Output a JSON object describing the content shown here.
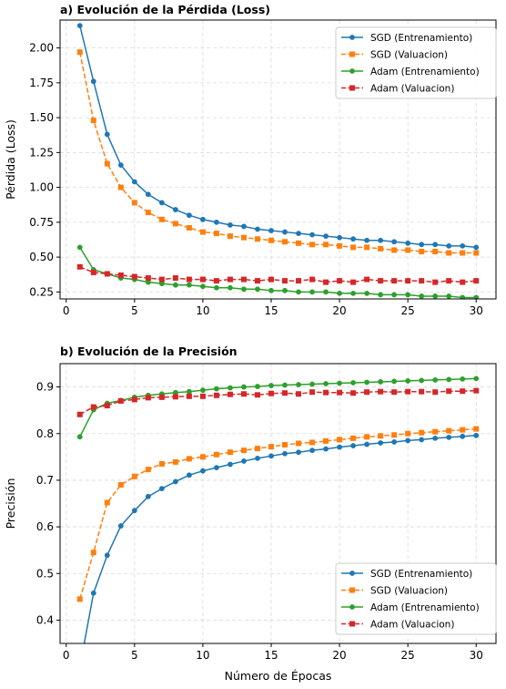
{
  "chart_data": [
    {
      "type": "line",
      "title": "a) Evolución de la Pérdida (Loss)",
      "xlabel": "",
      "ylabel": "Pérdida (Loss)",
      "xlim": [
        -0.45,
        31.45
      ],
      "ylim": [
        0.2,
        2.2
      ],
      "xticks": [
        0,
        5,
        10,
        15,
        20,
        25,
        30
      ],
      "yticks": [
        0.25,
        0.5,
        0.75,
        1.0,
        1.25,
        1.5,
        1.75,
        2.0
      ],
      "ytick_labels": [
        "0.25",
        "0.50",
        "0.75",
        "1.00",
        "1.25",
        "1.50",
        "1.75",
        "2.00"
      ],
      "grid": true,
      "legend_position": "top-right",
      "x": [
        1,
        2,
        3,
        4,
        5,
        6,
        7,
        8,
        9,
        10,
        11,
        12,
        13,
        14,
        15,
        16,
        17,
        18,
        19,
        20,
        21,
        22,
        23,
        24,
        25,
        26,
        27,
        28,
        29,
        30
      ],
      "series": [
        {
          "name": "SGD (Entrenamiento)",
          "color": "#1f77b4",
          "marker": "circle",
          "dash": false,
          "values": [
            2.16,
            1.76,
            1.38,
            1.16,
            1.04,
            0.95,
            0.89,
            0.84,
            0.8,
            0.77,
            0.75,
            0.73,
            0.72,
            0.7,
            0.69,
            0.68,
            0.67,
            0.66,
            0.65,
            0.64,
            0.63,
            0.62,
            0.62,
            0.61,
            0.6,
            0.59,
            0.59,
            0.58,
            0.58,
            0.57
          ]
        },
        {
          "name": "SGD (Valuacion)",
          "color": "#ff7f0e",
          "marker": "square",
          "dash": true,
          "values": [
            1.97,
            1.48,
            1.17,
            1.0,
            0.89,
            0.82,
            0.77,
            0.74,
            0.71,
            0.68,
            0.67,
            0.65,
            0.64,
            0.63,
            0.62,
            0.61,
            0.6,
            0.59,
            0.59,
            0.58,
            0.57,
            0.57,
            0.56,
            0.55,
            0.55,
            0.54,
            0.54,
            0.53,
            0.53,
            0.53
          ]
        },
        {
          "name": "Adam (Entrenamiento)",
          "color": "#2ca02c",
          "marker": "circle",
          "dash": false,
          "values": [
            0.57,
            0.41,
            0.38,
            0.35,
            0.34,
            0.32,
            0.31,
            0.3,
            0.3,
            0.29,
            0.28,
            0.28,
            0.27,
            0.27,
            0.26,
            0.26,
            0.25,
            0.25,
            0.25,
            0.24,
            0.24,
            0.24,
            0.23,
            0.23,
            0.23,
            0.22,
            0.22,
            0.22,
            0.21,
            0.21
          ]
        },
        {
          "name": "Adam (Valuacion)",
          "color": "#d62728",
          "marker": "square",
          "dash": true,
          "values": [
            0.43,
            0.39,
            0.38,
            0.37,
            0.36,
            0.35,
            0.34,
            0.35,
            0.34,
            0.34,
            0.33,
            0.34,
            0.34,
            0.33,
            0.34,
            0.33,
            0.33,
            0.34,
            0.32,
            0.33,
            0.32,
            0.34,
            0.33,
            0.33,
            0.33,
            0.33,
            0.32,
            0.33,
            0.32,
            0.33
          ]
        }
      ]
    },
    {
      "type": "line",
      "title": "b) Evolución de la Precisión",
      "xlabel": "Número de Épocas",
      "ylabel": "Precisión",
      "xlim": [
        -0.45,
        31.45
      ],
      "ylim": [
        0.35,
        0.95
      ],
      "xticks": [
        0,
        5,
        10,
        15,
        20,
        25,
        30
      ],
      "yticks": [
        0.4,
        0.5,
        0.6,
        0.7,
        0.8,
        0.9
      ],
      "ytick_labels": [
        "0.4",
        "0.5",
        "0.6",
        "0.7",
        "0.8",
        "0.9"
      ],
      "grid": true,
      "legend_position": "bottom-right",
      "x": [
        1,
        2,
        3,
        4,
        5,
        6,
        7,
        8,
        9,
        10,
        11,
        12,
        13,
        14,
        15,
        16,
        17,
        18,
        19,
        20,
        21,
        22,
        23,
        24,
        25,
        26,
        27,
        28,
        29,
        30
      ],
      "series": [
        {
          "name": "SGD (Entrenamiento)",
          "color": "#1f77b4",
          "marker": "circle",
          "dash": false,
          "values": [
            0.3,
            0.458,
            0.539,
            0.602,
            0.635,
            0.665,
            0.682,
            0.697,
            0.711,
            0.72,
            0.727,
            0.734,
            0.741,
            0.747,
            0.752,
            0.757,
            0.76,
            0.764,
            0.767,
            0.771,
            0.774,
            0.777,
            0.78,
            0.782,
            0.785,
            0.787,
            0.79,
            0.792,
            0.794,
            0.796
          ]
        },
        {
          "name": "SGD (Valuacion)",
          "color": "#ff7f0e",
          "marker": "square",
          "dash": true,
          "values": [
            0.445,
            0.545,
            0.652,
            0.69,
            0.708,
            0.723,
            0.735,
            0.739,
            0.746,
            0.75,
            0.755,
            0.76,
            0.764,
            0.768,
            0.772,
            0.776,
            0.779,
            0.781,
            0.784,
            0.787,
            0.79,
            0.793,
            0.795,
            0.797,
            0.8,
            0.802,
            0.804,
            0.806,
            0.808,
            0.81
          ]
        },
        {
          "name": "Adam (Entrenamiento)",
          "color": "#2ca02c",
          "marker": "circle",
          "dash": false,
          "values": [
            0.793,
            0.851,
            0.865,
            0.871,
            0.878,
            0.882,
            0.885,
            0.888,
            0.89,
            0.893,
            0.896,
            0.898,
            0.9,
            0.901,
            0.903,
            0.904,
            0.905,
            0.906,
            0.907,
            0.908,
            0.909,
            0.91,
            0.911,
            0.912,
            0.913,
            0.914,
            0.915,
            0.916,
            0.917,
            0.918
          ]
        },
        {
          "name": "Adam (Valuacion)",
          "color": "#d62728",
          "marker": "square",
          "dash": true,
          "values": [
            0.841,
            0.857,
            0.86,
            0.87,
            0.873,
            0.877,
            0.878,
            0.879,
            0.88,
            0.88,
            0.882,
            0.884,
            0.885,
            0.883,
            0.886,
            0.887,
            0.885,
            0.889,
            0.888,
            0.888,
            0.887,
            0.889,
            0.89,
            0.889,
            0.89,
            0.89,
            0.889,
            0.891,
            0.891,
            0.892
          ]
        }
      ]
    }
  ]
}
